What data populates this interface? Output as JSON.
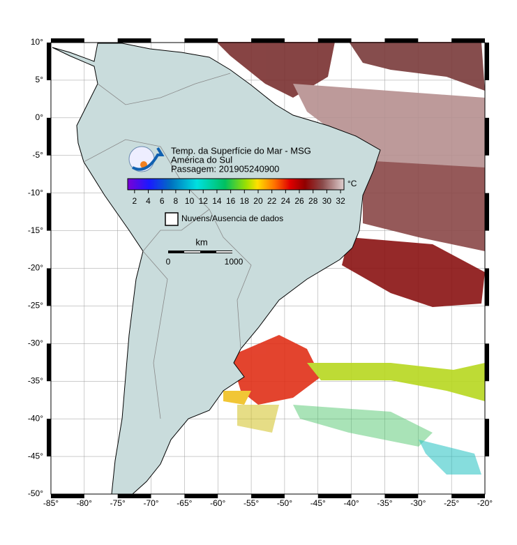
{
  "map": {
    "title": "Temp. da Superfície do Mar - MSG",
    "subtitle": "América do Sul",
    "pass": "Passagem: 201905240900",
    "xlim": [
      -85,
      -20
    ],
    "ylim": [
      -50,
      10
    ],
    "xticks": [
      {
        "value": -85,
        "label": "-85°"
      },
      {
        "value": -80,
        "label": "-80°"
      },
      {
        "value": -75,
        "label": "-75°"
      },
      {
        "value": -70,
        "label": "-70°"
      },
      {
        "value": -65,
        "label": "-65°"
      },
      {
        "value": -60,
        "label": "-60°"
      },
      {
        "value": -55,
        "label": "-55°"
      },
      {
        "value": -50,
        "label": "-50°"
      },
      {
        "value": -45,
        "label": "-45°"
      },
      {
        "value": -40,
        "label": "-40°"
      },
      {
        "value": -35,
        "label": "-35°"
      },
      {
        "value": -30,
        "label": "-30°"
      },
      {
        "value": -25,
        "label": "-25°"
      },
      {
        "value": -20,
        "label": "-20°"
      }
    ],
    "yticks": [
      {
        "value": 10,
        "label": "10°"
      },
      {
        "value": 5,
        "label": "5°"
      },
      {
        "value": 0,
        "label": "0°"
      },
      {
        "value": -5,
        "label": "-5°"
      },
      {
        "value": -10,
        "label": "-10°"
      },
      {
        "value": -15,
        "label": "-15°"
      },
      {
        "value": -20,
        "label": "-20°"
      },
      {
        "value": -25,
        "label": "-25°"
      },
      {
        "value": -30,
        "label": "-30°"
      },
      {
        "value": -35,
        "label": "-35°"
      },
      {
        "value": -40,
        "label": "-40°"
      },
      {
        "value": -45,
        "label": "-45°"
      },
      {
        "value": -50,
        "label": "-50°"
      }
    ],
    "grid": true,
    "colorbar": {
      "lim": [
        1,
        32.5
      ],
      "ticks": [
        2,
        4,
        6,
        8,
        10,
        12,
        14,
        16,
        18,
        20,
        22,
        24,
        26,
        28,
        30,
        32
      ],
      "unit": "°C"
    },
    "legend": "Nuvens/Ausencia de dados",
    "scalebar": {
      "unit": "km",
      "ticks": [
        0,
        1000
      ]
    }
  }
}
